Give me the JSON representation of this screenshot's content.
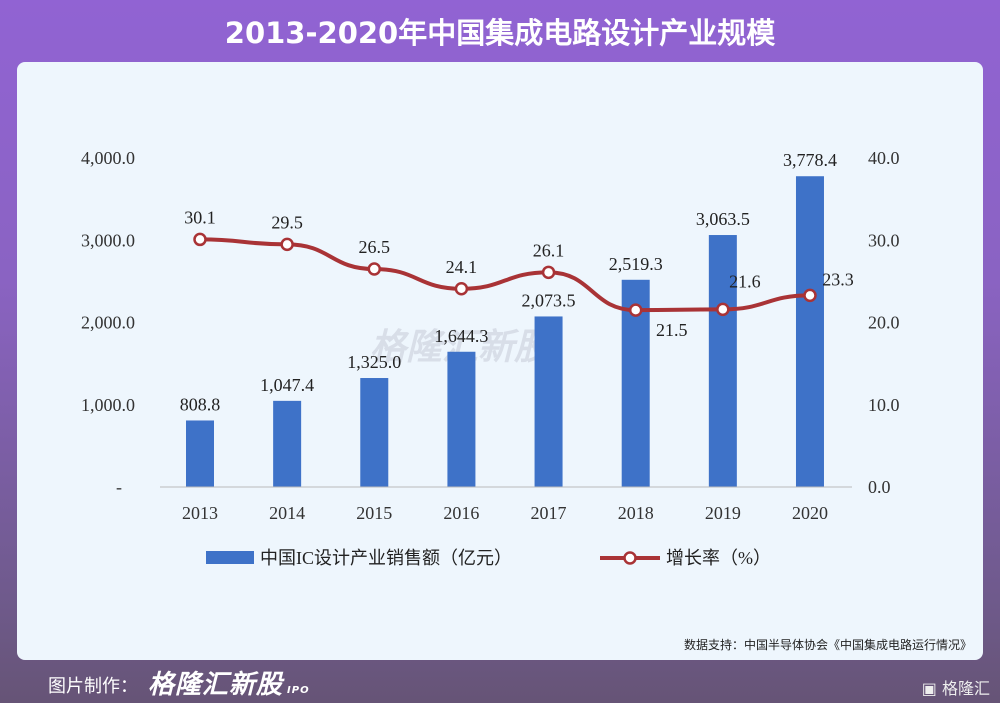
{
  "title": "2013-2020年中国集成电路设计产业规模",
  "chart_data": {
    "type": "bar+line",
    "categories": [
      "2013",
      "2014",
      "2015",
      "2016",
      "2017",
      "2018",
      "2019",
      "2020"
    ],
    "series": [
      {
        "name": "中国IC设计产业销售额（亿元）",
        "type": "bar",
        "axis": "left",
        "values": [
          808.8,
          1047.4,
          1325.0,
          1644.3,
          2073.5,
          2519.3,
          3063.5,
          3778.4
        ],
        "labels": [
          "808.8",
          "1,047.4",
          "1,325.0",
          "1,644.3",
          "2,073.5",
          "2,519.3",
          "3,063.5",
          "3,778.4"
        ],
        "color": "#3e72c8"
      },
      {
        "name": "增长率（%）",
        "type": "line",
        "axis": "right",
        "values": [
          30.1,
          29.5,
          26.5,
          24.1,
          26.1,
          21.5,
          21.6,
          23.3
        ],
        "labels": [
          "30.1",
          "29.5",
          "26.5",
          "24.1",
          "26.1",
          "21.5",
          "21.6",
          "23.3"
        ],
        "color": "#a93336"
      }
    ],
    "y_left": {
      "range": [
        0,
        4000
      ],
      "ticks": [
        "-",
        "1,000.0",
        "2,000.0",
        "3,000.0",
        "4,000.0"
      ]
    },
    "y_right": {
      "range": [
        0,
        40
      ],
      "ticks": [
        "0.0",
        "10.0",
        "20.0",
        "30.0",
        "40.0"
      ]
    },
    "grid": false,
    "legend": "bottom"
  },
  "source": "数据支持：中国半导体协会《中国集成电路运行情况》",
  "footer": {
    "made_by": "图片制作：",
    "logo": "格隆汇新股",
    "logo_ipo": "IPO",
    "brand": "格隆汇"
  },
  "watermark": "格隆汇新股"
}
